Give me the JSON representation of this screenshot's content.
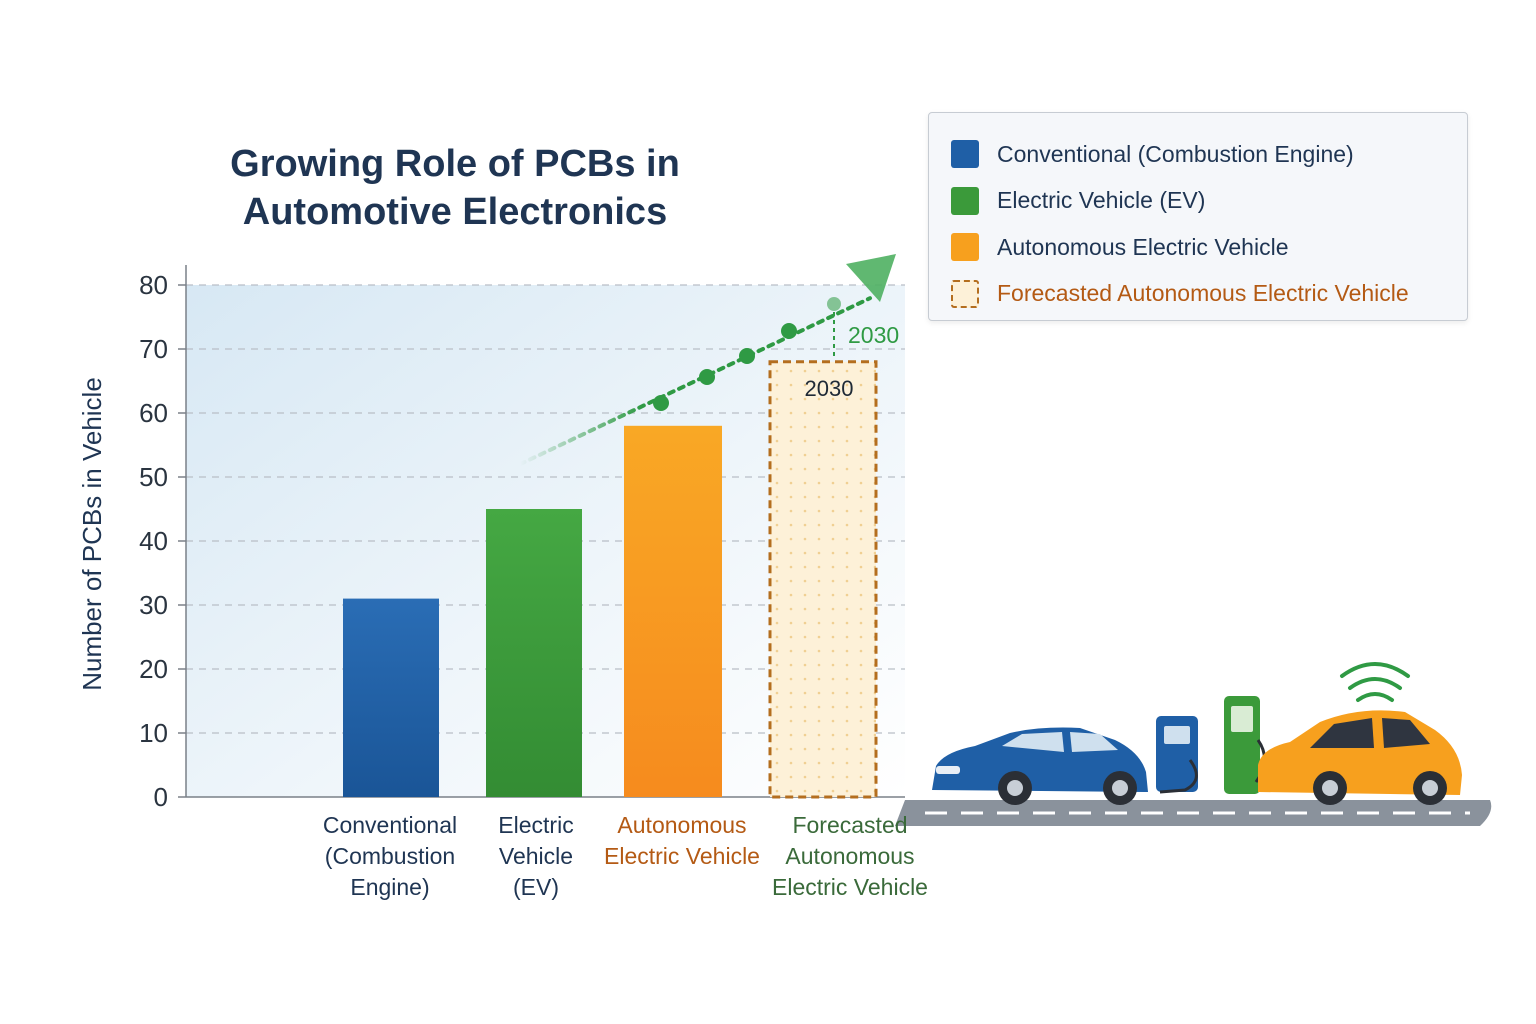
{
  "title": "Growing Role of PCBs in Automotive Electronics",
  "legend": {
    "items": [
      {
        "label": "Conventional (Combustion Engine)",
        "color": "#1f5fa6",
        "style": "solid"
      },
      {
        "label": "Electric Vehicle (EV)",
        "color": "#3b9a3a",
        "style": "solid"
      },
      {
        "label": "Autonomous Electric Vehicle",
        "color": "#f7a01e",
        "style": "solid"
      },
      {
        "label": "Forecasted Autonomous Electric Vehicle",
        "color": "#b46e1e",
        "style": "dashed"
      }
    ]
  },
  "chart_data": {
    "type": "bar",
    "ylabel": "Number of PCBs in Vehicle",
    "xlabel": "",
    "ylim": [
      0,
      80
    ],
    "yticks": [
      0,
      10,
      20,
      30,
      40,
      50,
      60,
      70,
      80
    ],
    "grid": "horizontal dashed",
    "legend_position": "top-right",
    "categories": [
      "Conventional (Combustion Engine)",
      "Electric Vehicle (EV)",
      "Autonomous Electric Vehicle",
      "Forecasted Autonomous Electric Vehicle"
    ],
    "category_lines": [
      [
        "Conventional",
        "(Combustion",
        "Engine)"
      ],
      [
        "Electric",
        "Vehicle",
        "(EV)"
      ],
      [
        "Autonomous",
        "Electric Vehicle"
      ],
      [
        "Forecasted",
        "Autonomous",
        "Electric Vehicle"
      ]
    ],
    "category_label_colors": [
      "#1f3553",
      "#1f3553",
      "#b45a14",
      "#3a6a3a"
    ],
    "values": [
      31,
      45,
      58,
      68
    ],
    "bar_colors": [
      "#1f5fa6",
      "#3b9a3a",
      "#f7a01e",
      "#fdf1d8"
    ],
    "forecast_index": 3,
    "annotations": {
      "bar_label": "2030",
      "trend_label": "2030",
      "trend_end_value": 77
    }
  },
  "colors": {
    "title": "#1f3553",
    "axis": "#7a8088",
    "grid": "#b9bec6",
    "trend": "#2f9a44",
    "forecast_border": "#b46e1e"
  }
}
